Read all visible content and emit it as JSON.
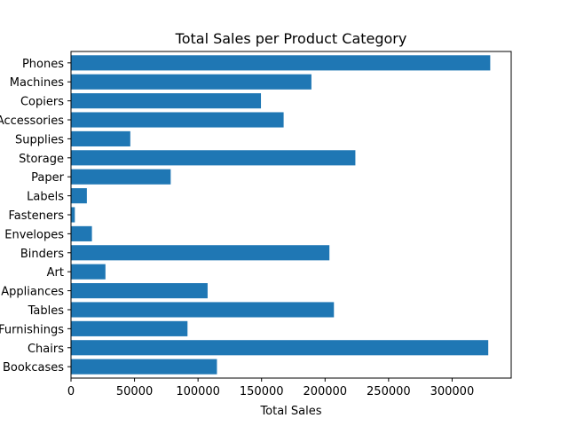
{
  "chart_data": {
    "type": "bar",
    "orientation": "horizontal",
    "title": "Total Sales per Product Category",
    "xlabel": "Total Sales",
    "ylabel": "",
    "categories": [
      "Bookcases",
      "Chairs",
      "Furnishings",
      "Tables",
      "Appliances",
      "Art",
      "Binders",
      "Envelopes",
      "Fasteners",
      "Labels",
      "Paper",
      "Storage",
      "Supplies",
      "Accessories",
      "Copiers",
      "Machines",
      "Phones"
    ],
    "values": [
      114880,
      328449,
      91705,
      206966,
      107532,
      27119,
      203413,
      16476,
      3024,
      12486,
      78479,
      223844,
      46674,
      167380,
      149528,
      189239,
      330007
    ],
    "xlim": [
      0,
      346507
    ],
    "xticks": [
      0,
      50000,
      100000,
      150000,
      200000,
      250000,
      300000
    ],
    "grid": false,
    "bar_color": "#1f77b4"
  }
}
